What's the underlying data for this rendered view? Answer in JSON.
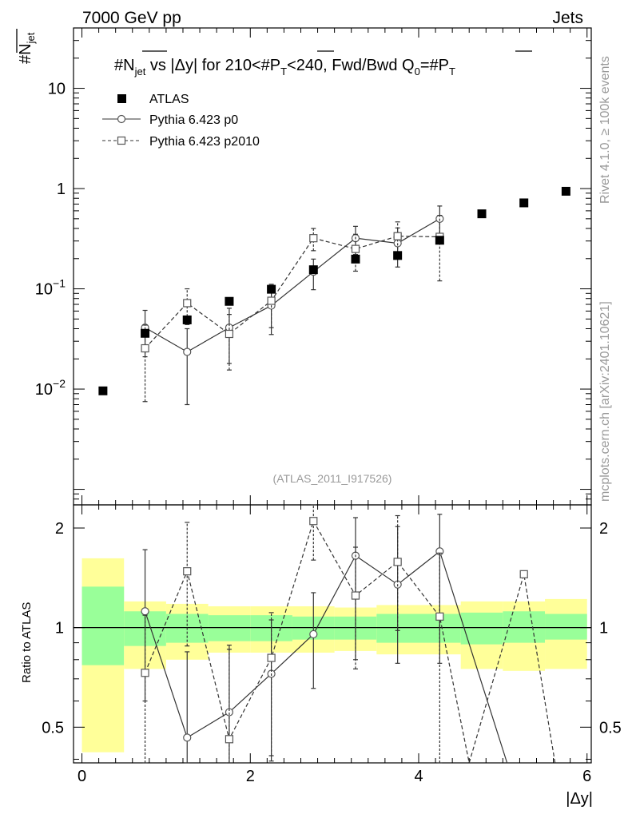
{
  "header": {
    "left": "7000 GeV pp",
    "right": "Jets",
    "ylabel_main": "#N",
    "ylabel_main_sub": "jet",
    "side_label": "Rivet 4.1.0, ≥ 100k events",
    "side_label2": "mcplots.cern.ch [arXiv:2401.10621]",
    "analysis_id": "(ATLAS_2011_I917526)",
    "xlabel": "|Δy|",
    "ylabel_ratio": "Ratio to ATLAS"
  },
  "title_parts": {
    "a": "#N",
    "a_sub": "jet",
    "b": " vs |Δy|  for 210<#P",
    "b_sub": "T",
    "c": "<240, Fwd/Bwd Q",
    "c_sub": "0",
    "d": "=#P",
    "d_sub": "T"
  },
  "legend": [
    {
      "label": "ATLAS"
    },
    {
      "label": "Pythia 6.423 p0"
    },
    {
      "label": "Pythia 6.423 p2010"
    }
  ],
  "chart_data": [
    {
      "type": "scatter",
      "panel": "main",
      "title": "#N_jet vs |Δy| for 210<#P_T<240, Fwd/Bwd Q_0=#P_T",
      "xlabel": "|Δy|",
      "ylabel": "#N_jet",
      "yscale": "log",
      "xlim": [
        -0.1,
        6.05
      ],
      "ylim": [
        0.0007,
        40
      ],
      "y_ticks": [
        {
          "value": 0.01,
          "label": "10",
          "exp": "−2"
        },
        {
          "value": 0.1,
          "label": "10",
          "exp": "−1"
        },
        {
          "value": 1,
          "label": "1",
          "exp": ""
        },
        {
          "value": 10,
          "label": "10",
          "exp": ""
        }
      ],
      "series": [
        {
          "name": "ATLAS",
          "style": "data",
          "x": [
            0.25,
            0.75,
            1.25,
            1.75,
            2.25,
            2.75,
            3.25,
            3.75,
            4.25,
            4.75,
            5.25,
            5.75
          ],
          "y": [
            0.0096,
            0.036,
            0.049,
            0.075,
            0.099,
            0.155,
            0.198,
            0.215,
            0.305,
            0.56,
            0.72,
            0.94
          ]
        },
        {
          "name": "Pythia 6.423 p0",
          "style": "solid-circle",
          "x": [
            0.75,
            1.25,
            1.75,
            2.25,
            2.75,
            3.25,
            3.75,
            4.25
          ],
          "y": [
            0.041,
            0.0235,
            0.041,
            0.068,
            0.148,
            0.32,
            0.285,
            0.5
          ],
          "err": [
            0.02,
            0.0165,
            0.023,
            0.033,
            0.05,
            0.1,
            0.12,
            0.17
          ]
        },
        {
          "name": "Pythia 6.423 p2010",
          "style": "dashed-square",
          "x": [
            0.75,
            1.25,
            1.75,
            2.25,
            2.75,
            3.25,
            3.75,
            4.25
          ],
          "y": [
            0.0255,
            0.072,
            0.0355,
            0.076,
            0.32,
            0.25,
            0.335,
            0.33
          ],
          "err": [
            0.018,
            0.028,
            0.02,
            0.035,
            0.08,
            0.1,
            0.13,
            0.21
          ]
        }
      ]
    },
    {
      "type": "scatter",
      "panel": "ratio",
      "xlabel": "|Δy|",
      "ylabel": "Ratio to ATLAS",
      "yscale": "log",
      "xlim": [
        -0.1,
        6.05
      ],
      "ylim": [
        0.39,
        2.35
      ],
      "x_ticks": [
        0,
        2,
        4,
        6
      ],
      "y_ticks": [
        0.5,
        1,
        2
      ],
      "bands": {
        "edges": [
          0,
          0.5,
          1,
          1.5,
          2,
          2.5,
          3,
          3.5,
          4,
          4.5,
          5,
          5.5,
          6
        ],
        "yellow": [
          [
            0.42,
            1.62
          ],
          [
            0.75,
            1.2
          ],
          [
            0.8,
            1.18
          ],
          [
            0.84,
            1.16
          ],
          [
            0.84,
            1.16
          ],
          [
            0.84,
            1.16
          ],
          [
            0.85,
            1.15
          ],
          [
            0.83,
            1.17
          ],
          [
            0.83,
            1.17
          ],
          [
            0.75,
            1.2
          ],
          [
            0.74,
            1.2
          ],
          [
            0.75,
            1.22
          ],
          [
            0.84,
            1.16
          ]
        ],
        "green": [
          [
            0.77,
            1.33
          ],
          [
            0.88,
            1.12
          ],
          [
            0.9,
            1.1
          ],
          [
            0.91,
            1.09
          ],
          [
            0.91,
            1.09
          ],
          [
            0.92,
            1.08
          ],
          [
            0.92,
            1.08
          ],
          [
            0.9,
            1.1
          ],
          [
            0.9,
            1.1
          ],
          [
            0.89,
            1.11
          ],
          [
            0.9,
            1.12
          ],
          [
            0.92,
            1.1
          ],
          [
            0.92,
            1.09
          ]
        ]
      },
      "series": [
        {
          "name": "Pythia 6.423 p0",
          "style": "solid-circle",
          "x": [
            0.75,
            1.25,
            1.75,
            2.25,
            2.75,
            3.25,
            3.75,
            4.25,
            5.05
          ],
          "y": [
            1.12,
            0.465,
            0.555,
            0.725,
            0.955,
            1.65,
            1.35,
            1.7,
            0.39
          ],
          "err_lo": [
            0.52,
            0.23,
            0.19,
            0.33,
            0.3,
            0.85,
            0.57,
            0.92,
            0
          ],
          "err_hi": [
            0.6,
            0.38,
            0.33,
            0.33,
            0.32,
            0.5,
            0.67,
            0.5,
            0
          ],
          "marker": [
            true,
            true,
            true,
            true,
            true,
            true,
            true,
            true,
            false
          ]
        },
        {
          "name": "Pythia 6.423 p2010",
          "style": "dashed-square",
          "x": [
            0.75,
            1.25,
            1.75,
            2.25,
            2.75,
            3.25,
            3.75,
            4.25,
            4.6,
            5.25,
            5.62
          ],
          "y": [
            0.73,
            1.48,
            0.46,
            0.81,
            2.1,
            1.25,
            1.58,
            1.08,
            0.39,
            1.45,
            0.39
          ],
          "err_lo": [
            0.36,
            0.6,
            0.2,
            0.4,
            0.5,
            0.5,
            0.6,
            0.9,
            0,
            0,
            0
          ],
          "err_hi": [
            0.36,
            0.6,
            0.4,
            0.3,
            0.3,
            0.5,
            0.6,
            0.6,
            0,
            0,
            0
          ],
          "marker": [
            true,
            true,
            true,
            true,
            true,
            true,
            true,
            true,
            false,
            true,
            false
          ]
        }
      ]
    }
  ]
}
